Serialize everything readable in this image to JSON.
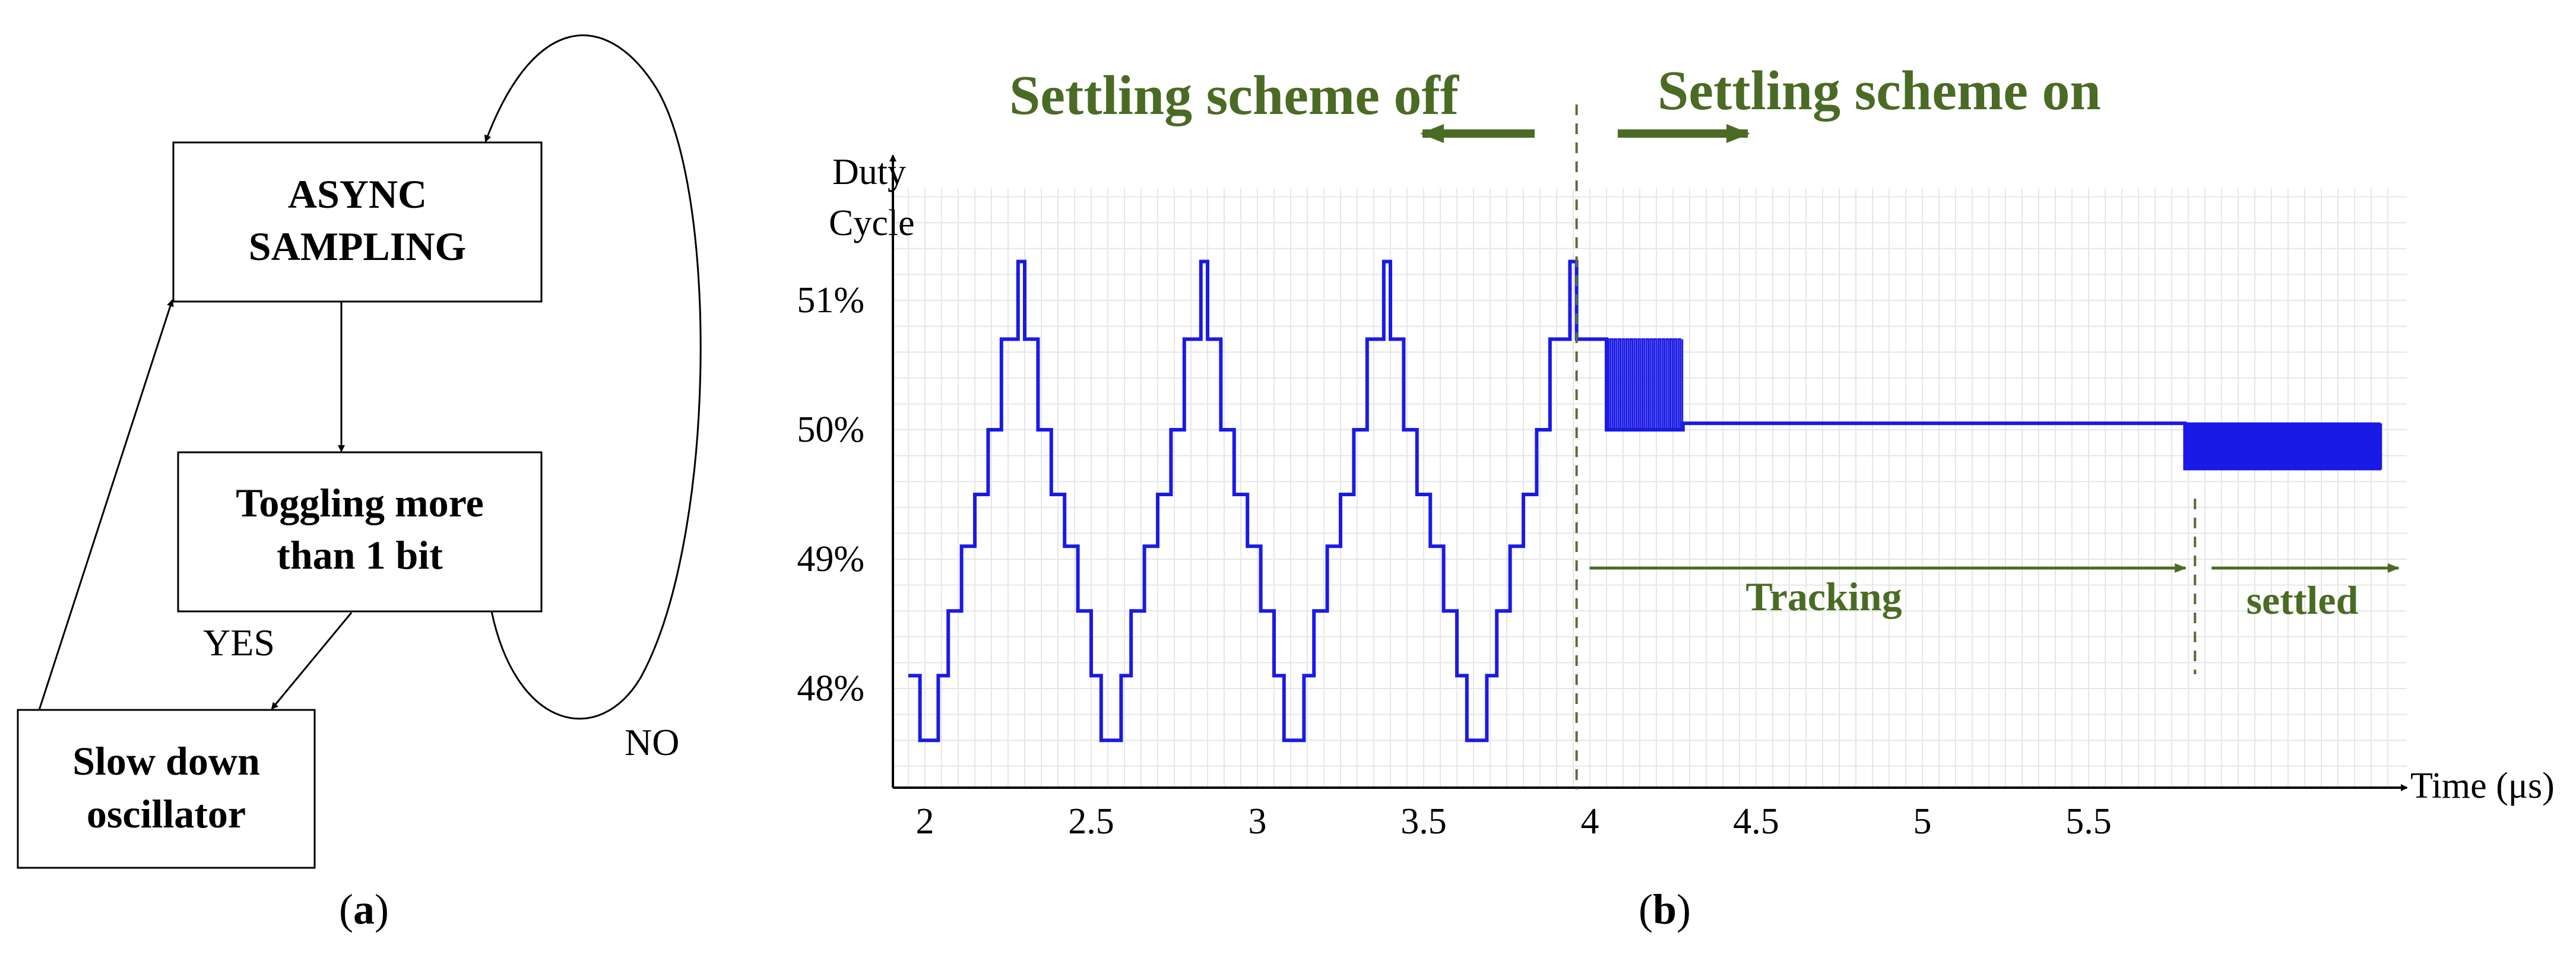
{
  "flowchart": {
    "async_sampling": [
      "ASYNC",
      "SAMPLING"
    ],
    "toggling": [
      "Toggling more",
      "than 1 bit"
    ],
    "slow_down": [
      "Slow down",
      "oscillator"
    ],
    "yes_label": "YES",
    "no_label": "NO",
    "caption_letter": "a"
  },
  "chart": {
    "caption_letter": "b",
    "colors": {
      "trace": "#1a1ae6",
      "annotation": "#4a6b24",
      "grid": "#e6e6e6"
    },
    "off_label": "Settling scheme off",
    "on_label": "Settling scheme on",
    "tracking_label": "Tracking",
    "settled_label": "settled"
  },
  "chart_data": {
    "type": "line",
    "xlabel": "Time (μs)",
    "ylabel": [
      "Duty",
      "Cycle"
    ],
    "x_ticks": [
      "2",
      "2.5",
      "3",
      "3.5",
      "4",
      "4.5",
      "5",
      "5.5"
    ],
    "x_tick_values": [
      2,
      2.5,
      3,
      3.5,
      4,
      4.5,
      5,
      5.5
    ],
    "y_ticks": [
      "48%",
      "49%",
      "50%",
      "51%"
    ],
    "y_tick_values": [
      48,
      49,
      50,
      51
    ],
    "xlim": [
      1.9,
      6.4
    ],
    "ylim": [
      47.4,
      51.9
    ],
    "grid": true,
    "settling_on_time": 3.96,
    "settled_time": 5.82,
    "series": [
      {
        "points": [
          [
            1.95,
            48.1
          ],
          [
            1.985,
            48.1
          ],
          [
            1.985,
            47.6
          ],
          [
            2.04,
            47.6
          ],
          [
            2.04,
            48.1
          ],
          [
            2.07,
            48.1
          ],
          [
            2.07,
            48.6
          ],
          [
            2.11,
            48.6
          ],
          [
            2.11,
            49.1
          ],
          [
            2.15,
            49.1
          ],
          [
            2.15,
            49.5
          ],
          [
            2.19,
            49.5
          ],
          [
            2.19,
            50.0
          ],
          [
            2.23,
            50.0
          ],
          [
            2.23,
            50.7
          ],
          [
            2.28,
            50.7
          ],
          [
            2.28,
            51.3
          ],
          [
            2.3,
            51.3
          ],
          [
            2.3,
            50.7
          ],
          [
            2.34,
            50.7
          ],
          [
            2.34,
            50.0
          ],
          [
            2.38,
            50.0
          ],
          [
            2.38,
            49.5
          ],
          [
            2.42,
            49.5
          ],
          [
            2.42,
            49.1
          ],
          [
            2.46,
            49.1
          ],
          [
            2.46,
            48.6
          ],
          [
            2.5,
            48.6
          ],
          [
            2.5,
            48.1
          ],
          [
            2.53,
            48.1
          ],
          [
            2.53,
            47.6
          ],
          [
            2.59,
            47.6
          ],
          [
            2.59,
            48.1
          ],
          [
            2.62,
            48.1
          ],
          [
            2.62,
            48.6
          ],
          [
            2.66,
            48.6
          ],
          [
            2.66,
            49.1
          ],
          [
            2.7,
            49.1
          ],
          [
            2.7,
            49.5
          ],
          [
            2.74,
            49.5
          ],
          [
            2.74,
            50.0
          ],
          [
            2.78,
            50.0
          ],
          [
            2.78,
            50.7
          ],
          [
            2.83,
            50.7
          ],
          [
            2.83,
            51.3
          ],
          [
            2.85,
            51.3
          ],
          [
            2.85,
            50.7
          ],
          [
            2.89,
            50.7
          ],
          [
            2.89,
            50.0
          ],
          [
            2.93,
            50.0
          ],
          [
            2.93,
            49.5
          ],
          [
            2.97,
            49.5
          ],
          [
            2.97,
            49.1
          ],
          [
            3.01,
            49.1
          ],
          [
            3.01,
            48.6
          ],
          [
            3.05,
            48.6
          ],
          [
            3.05,
            48.1
          ],
          [
            3.08,
            48.1
          ],
          [
            3.08,
            47.6
          ],
          [
            3.14,
            47.6
          ],
          [
            3.14,
            48.1
          ],
          [
            3.17,
            48.1
          ],
          [
            3.17,
            48.6
          ],
          [
            3.21,
            48.6
          ],
          [
            3.21,
            49.1
          ],
          [
            3.25,
            49.1
          ],
          [
            3.25,
            49.5
          ],
          [
            3.29,
            49.5
          ],
          [
            3.29,
            50.0
          ],
          [
            3.33,
            50.0
          ],
          [
            3.33,
            50.7
          ],
          [
            3.38,
            50.7
          ],
          [
            3.38,
            51.3
          ],
          [
            3.4,
            51.3
          ],
          [
            3.4,
            50.7
          ],
          [
            3.44,
            50.7
          ],
          [
            3.44,
            50.0
          ],
          [
            3.48,
            50.0
          ],
          [
            3.48,
            49.5
          ],
          [
            3.52,
            49.5
          ],
          [
            3.52,
            49.1
          ],
          [
            3.56,
            49.1
          ],
          [
            3.56,
            48.6
          ],
          [
            3.6,
            48.6
          ],
          [
            3.6,
            48.1
          ],
          [
            3.63,
            48.1
          ],
          [
            3.63,
            47.6
          ],
          [
            3.69,
            47.6
          ],
          [
            3.69,
            48.1
          ],
          [
            3.72,
            48.1
          ],
          [
            3.72,
            48.6
          ],
          [
            3.76,
            48.6
          ],
          [
            3.76,
            49.1
          ],
          [
            3.8,
            49.1
          ],
          [
            3.8,
            49.5
          ],
          [
            3.84,
            49.5
          ],
          [
            3.84,
            50.0
          ],
          [
            3.88,
            50.0
          ],
          [
            3.88,
            50.7
          ],
          [
            3.94,
            50.7
          ],
          [
            3.94,
            51.3
          ],
          [
            3.96,
            51.3
          ],
          [
            3.96,
            50.7
          ],
          [
            4.05,
            50.7
          ],
          [
            4.05,
            50.0
          ],
          [
            4.28,
            50.0
          ],
          [
            4.28,
            50.05
          ],
          [
            5.79,
            50.05
          ],
          [
            5.79,
            49.7
          ],
          [
            6.38,
            49.7
          ]
        ]
      }
    ]
  }
}
